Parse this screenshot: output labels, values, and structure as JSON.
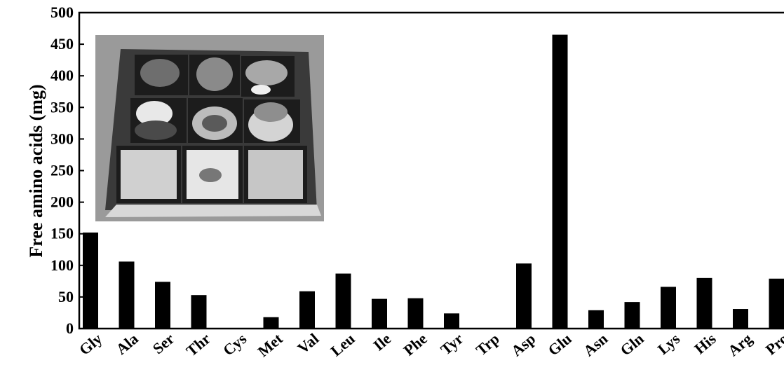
{
  "chart_data": {
    "type": "bar",
    "title": "",
    "xlabel": "",
    "ylabel": "Free amino acids (mg)",
    "ylim": [
      0,
      500
    ],
    "yticks": [
      0,
      50,
      100,
      150,
      200,
      250,
      300,
      350,
      400,
      450,
      500
    ],
    "categories": [
      "Gly",
      "Ala",
      "Ser",
      "Thr",
      "Cys",
      "Met",
      "Val",
      "Leu",
      "Ile",
      "Phe",
      "Tyr",
      "Trp",
      "Asp",
      "Glu",
      "Asn",
      "Gln",
      "Lys",
      "His",
      "Arg",
      "Pro"
    ],
    "values": [
      152,
      106,
      74,
      53,
      0,
      18,
      59,
      87,
      47,
      48,
      24,
      0,
      103,
      465,
      29,
      42,
      66,
      80,
      31,
      79
    ],
    "bar_color": "#000000",
    "grid": false,
    "legend": "none",
    "inset_image": "photo of bento lunch box with nine compartments"
  }
}
